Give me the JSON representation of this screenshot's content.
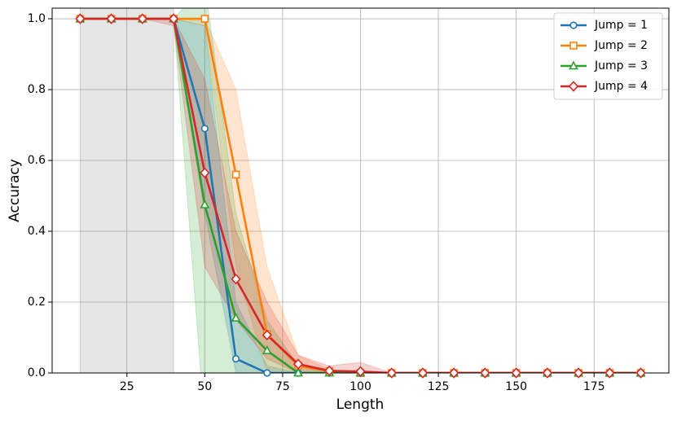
{
  "chart_data": {
    "type": "line",
    "x_label": "Length",
    "y_label": "Accuracy",
    "x": [
      10,
      20,
      30,
      40,
      50,
      60,
      70,
      80,
      90,
      100,
      110,
      120,
      130,
      140,
      150,
      160,
      170,
      180,
      190
    ],
    "series": [
      {
        "name": "Jump = 1",
        "color": "#1f77b4",
        "marker": "circle",
        "values": [
          1,
          1,
          1,
          1,
          0.69,
          0.04,
          0,
          0,
          0,
          0,
          0,
          0,
          0,
          0,
          0,
          0,
          0,
          0,
          0
        ],
        "lower": [
          1,
          1,
          1,
          1,
          0.45,
          0,
          0,
          0,
          0,
          0,
          0,
          0,
          0,
          0,
          0,
          0,
          0,
          0,
          0
        ],
        "upper": [
          1,
          1,
          1,
          1,
          0.98,
          0.2,
          0.02,
          0,
          0,
          0,
          0,
          0,
          0,
          0,
          0,
          0,
          0,
          0,
          0
        ]
      },
      {
        "name": "Jump = 2",
        "color": "#ff7f0e",
        "marker": "square",
        "values": [
          1,
          1,
          1,
          1,
          1,
          0.56,
          0.11,
          0.02,
          0.005,
          0,
          0,
          0,
          0,
          0,
          0,
          0,
          0,
          0,
          0
        ],
        "lower": [
          1,
          1,
          1,
          1,
          0.98,
          0.3,
          0,
          0,
          0,
          0,
          0,
          0,
          0,
          0,
          0,
          0,
          0,
          0,
          0
        ],
        "upper": [
          1,
          1,
          1,
          1,
          1,
          0.8,
          0.3,
          0.05,
          0.01,
          0,
          0,
          0,
          0,
          0,
          0,
          0,
          0,
          0,
          0
        ]
      },
      {
        "name": "Jump = 3",
        "color": "#2ca02c",
        "marker": "triangle",
        "values": [
          1,
          1,
          1,
          1,
          0.475,
          0.155,
          0.063,
          0,
          0,
          0,
          0,
          0,
          0,
          0,
          0,
          0,
          0,
          0,
          0
        ],
        "lower": [
          1,
          1,
          1,
          1,
          -0.15,
          0,
          0,
          0,
          0,
          0,
          0,
          0,
          0,
          0,
          0,
          0,
          0,
          0,
          0
        ],
        "upper": [
          1,
          1,
          1,
          1,
          1.1,
          0.45,
          0.15,
          0.02,
          0,
          0,
          0,
          0,
          0,
          0,
          0,
          0,
          0,
          0,
          0
        ]
      },
      {
        "name": "Jump = 4",
        "color": "#d62728",
        "marker": "diamond",
        "values": [
          1,
          1,
          1,
          1,
          0.565,
          0.265,
          0.107,
          0.025,
          0.006,
          0.004,
          0,
          0,
          0,
          0,
          0,
          0,
          0,
          0,
          0
        ],
        "lower": [
          1,
          1,
          1,
          0.98,
          0.3,
          0.15,
          0.04,
          0,
          0,
          0,
          0,
          0,
          0,
          0,
          0,
          0,
          0,
          0,
          0
        ],
        "upper": [
          1,
          1,
          1,
          1,
          0.83,
          0.4,
          0.2,
          0.05,
          0.02,
          0.03,
          0,
          0,
          0,
          0,
          0,
          0,
          0,
          0,
          0
        ]
      }
    ],
    "shaded_span": [
      10,
      40
    ],
    "xlim": [
      1,
      199
    ],
    "ylim": [
      0,
      1.03
    ],
    "xticks": [
      25,
      50,
      75,
      100,
      125,
      150,
      175
    ],
    "yticks": [
      {
        "value": 0,
        "label": "0.0"
      },
      0.2,
      0.4,
      0.6,
      0.8,
      {
        "value": 1,
        "label": "1.0"
      }
    ],
    "grid": true,
    "legend": "upper right"
  }
}
